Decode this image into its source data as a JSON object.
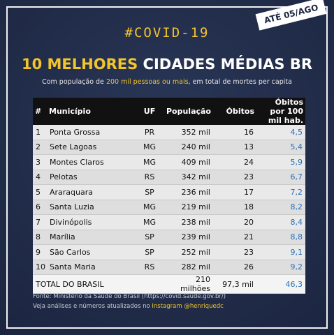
{
  "badge": "ATÉ 05/AGO",
  "hashtag": "#COVID-19",
  "title": {
    "highlight": "10 MELHORES",
    "rest": "CIDADES MÉDIAS BR"
  },
  "subtitle": {
    "before": "Com população de ",
    "highlight": "200 mil pessoas ou mais",
    "after": ", em total de mortes per capita"
  },
  "table": {
    "header": [
      "#",
      "Município",
      "UF",
      "População",
      "Óbitos",
      "Óbitos por 100 mil hab."
    ],
    "rows": [
      [
        "1",
        "Ponta Grossa",
        "PR",
        "352 mil",
        "16",
        "4,5"
      ],
      [
        "2",
        "Sete Lagoas",
        "MG",
        "240 mil",
        "13",
        "5,4"
      ],
      [
        "3",
        "Montes Claros",
        "MG",
        "409 mil",
        "24",
        "5,9"
      ],
      [
        "4",
        "Pelotas",
        "RS",
        "342 mil",
        "23",
        "6,7"
      ],
      [
        "5",
        "Araraquara",
        "SP",
        "236 mil",
        "17",
        "7,2"
      ],
      [
        "6",
        "Santa Luzia",
        "MG",
        "219 mil",
        "18",
        "8,2"
      ],
      [
        "7",
        "Divinópolis",
        "MG",
        "238 mil",
        "20",
        "8,4"
      ],
      [
        "8",
        "Marília",
        "SP",
        "239 mil",
        "21",
        "8,8"
      ],
      [
        "9",
        "São Carlos",
        "SP",
        "252 mil",
        "23",
        "9,1"
      ],
      [
        "10",
        "Santa Maria",
        "RS",
        "282 mil",
        "26",
        "9,2"
      ]
    ],
    "total": [
      "TOTAL DO BRASIL",
      "210 milhões",
      "97,3 mil",
      "46,3"
    ]
  },
  "footer": {
    "source": "Fonte: Ministério da Saúde do Brasil (https://covid.saude.gov.br/)",
    "more": {
      "before": "Veja análises e números atualizados no ",
      "highlight": "Instagram @henriquedc"
    }
  }
}
